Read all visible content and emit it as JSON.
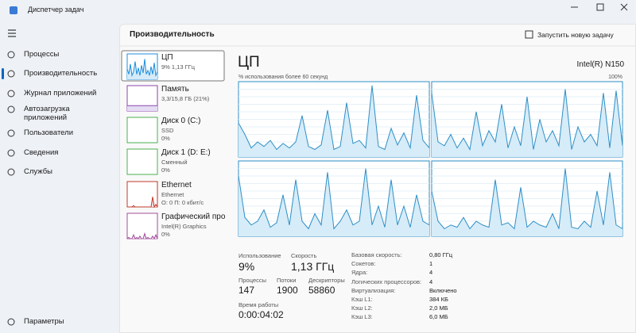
{
  "window": {
    "title": "Диспетчер задач"
  },
  "nav": {
    "items": [
      "Процессы",
      "Производительность",
      "Журнал приложений",
      "Автозагрузка приложений",
      "Пользователи",
      "Сведения",
      "Службы"
    ],
    "settings": "Параметры"
  },
  "header": {
    "title": "Производительность",
    "action": "Запустить новую задачу"
  },
  "devices": [
    {
      "name": "ЦП",
      "details": [
        "9%  1,13 ГГц"
      ],
      "color": "#1c8ddb",
      "fill": "#d5ebf8",
      "graph": [
        40,
        20,
        60,
        15,
        30,
        70,
        20,
        45,
        15,
        55,
        25,
        80,
        20,
        35,
        15,
        50,
        20,
        65,
        15,
        30
      ]
    },
    {
      "name": "Память",
      "details": [
        "3,3/15,8 ГБ (21%)"
      ],
      "color": "#8e44ad",
      "fill": "#e4dcf3",
      "graph": [
        21,
        21,
        21,
        21,
        21,
        21,
        21,
        21,
        21,
        21,
        21,
        21,
        21,
        21,
        21,
        21,
        21,
        21,
        21,
        21
      ]
    },
    {
      "name": "Диск 0 (C:)",
      "details": [
        "SSD",
        "0%"
      ],
      "color": "#4caf50",
      "fill": "#e3f3e0"
    },
    {
      "name": "Диск 1 (D: E:)",
      "details": [
        "Сменный",
        "0%"
      ],
      "color": "#4caf50",
      "fill": "#e3f3e0"
    },
    {
      "name": "Ethernet",
      "details": [
        "Ethernet",
        "О: 0 П: 0 кбит/с"
      ],
      "color": "#c0392b",
      "fill": "#f6dede",
      "graph": [
        0,
        0,
        0,
        0,
        5,
        0,
        0,
        0,
        0,
        0,
        0,
        0,
        0,
        0,
        0,
        0,
        40,
        0,
        10,
        0
      ]
    },
    {
      "name": "Графический про",
      "details": [
        "Intel(R) Graphics",
        "0%"
      ],
      "color": "#a0509b",
      "fill": "#f1dff0",
      "graph": [
        0,
        5,
        0,
        0,
        15,
        0,
        5,
        0,
        10,
        0,
        0,
        20,
        0,
        5,
        0,
        0,
        10,
        0,
        15,
        0
      ]
    }
  ],
  "cpu": {
    "title": "ЦП",
    "model": "Intel(R) N150",
    "graph_caption": "% использования более 60 секунд",
    "max_label": "100%",
    "ylim": [
      0,
      100
    ],
    "color": "#2e8fc7",
    "fill": "#d6ecf8",
    "cores": [
      [
        45,
        30,
        12,
        20,
        14,
        22,
        10,
        18,
        12,
        20,
        55,
        14,
        10,
        16,
        62,
        10,
        14,
        72,
        18,
        22,
        12,
        95,
        14,
        10,
        38,
        16,
        32,
        12,
        82,
        22,
        12
      ],
      [
        85,
        20,
        15,
        30,
        12,
        25,
        10,
        60,
        15,
        35,
        20,
        70,
        12,
        40,
        15,
        80,
        10,
        50,
        20,
        35,
        15,
        90,
        10,
        40,
        20,
        30,
        15,
        85,
        12,
        88,
        15
      ],
      [
        80,
        25,
        15,
        20,
        35,
        12,
        18,
        55,
        15,
        75,
        20,
        10,
        30,
        15,
        85,
        10,
        20,
        35,
        15,
        20,
        90,
        15,
        40,
        12,
        75,
        15,
        40,
        12,
        55,
        20,
        15
      ],
      [
        60,
        20,
        10,
        15,
        12,
        25,
        10,
        20,
        15,
        12,
        75,
        15,
        18,
        10,
        65,
        12,
        20,
        15,
        12,
        30,
        10,
        90,
        12,
        10,
        20,
        12,
        60,
        15,
        85,
        15,
        10
      ]
    ],
    "stats": [
      {
        "label": "Использование",
        "value": "9%"
      },
      {
        "label": "Скорость",
        "value": "1,13 ГГц"
      },
      {
        "label": "Процессы",
        "value": "147"
      },
      {
        "label": "Потоки",
        "value": "1900"
      },
      {
        "label": "Дескрипторы",
        "value": "58860"
      },
      {
        "label": "Время работы",
        "value": "0:00:04:02"
      }
    ],
    "specs": [
      [
        "Базовая скорость:",
        "0,80 ГГц"
      ],
      [
        "Сокетов:",
        "1"
      ],
      [
        "Ядра:",
        "4"
      ],
      [
        "Логических процессоров:",
        "4"
      ],
      [
        "Виртуализация:",
        "Включено"
      ],
      [
        "Кэш L1:",
        "384 КБ"
      ],
      [
        "Кэш L2:",
        "2,0 МБ"
      ],
      [
        "Кэш L3:",
        "6,0 МБ"
      ]
    ]
  }
}
